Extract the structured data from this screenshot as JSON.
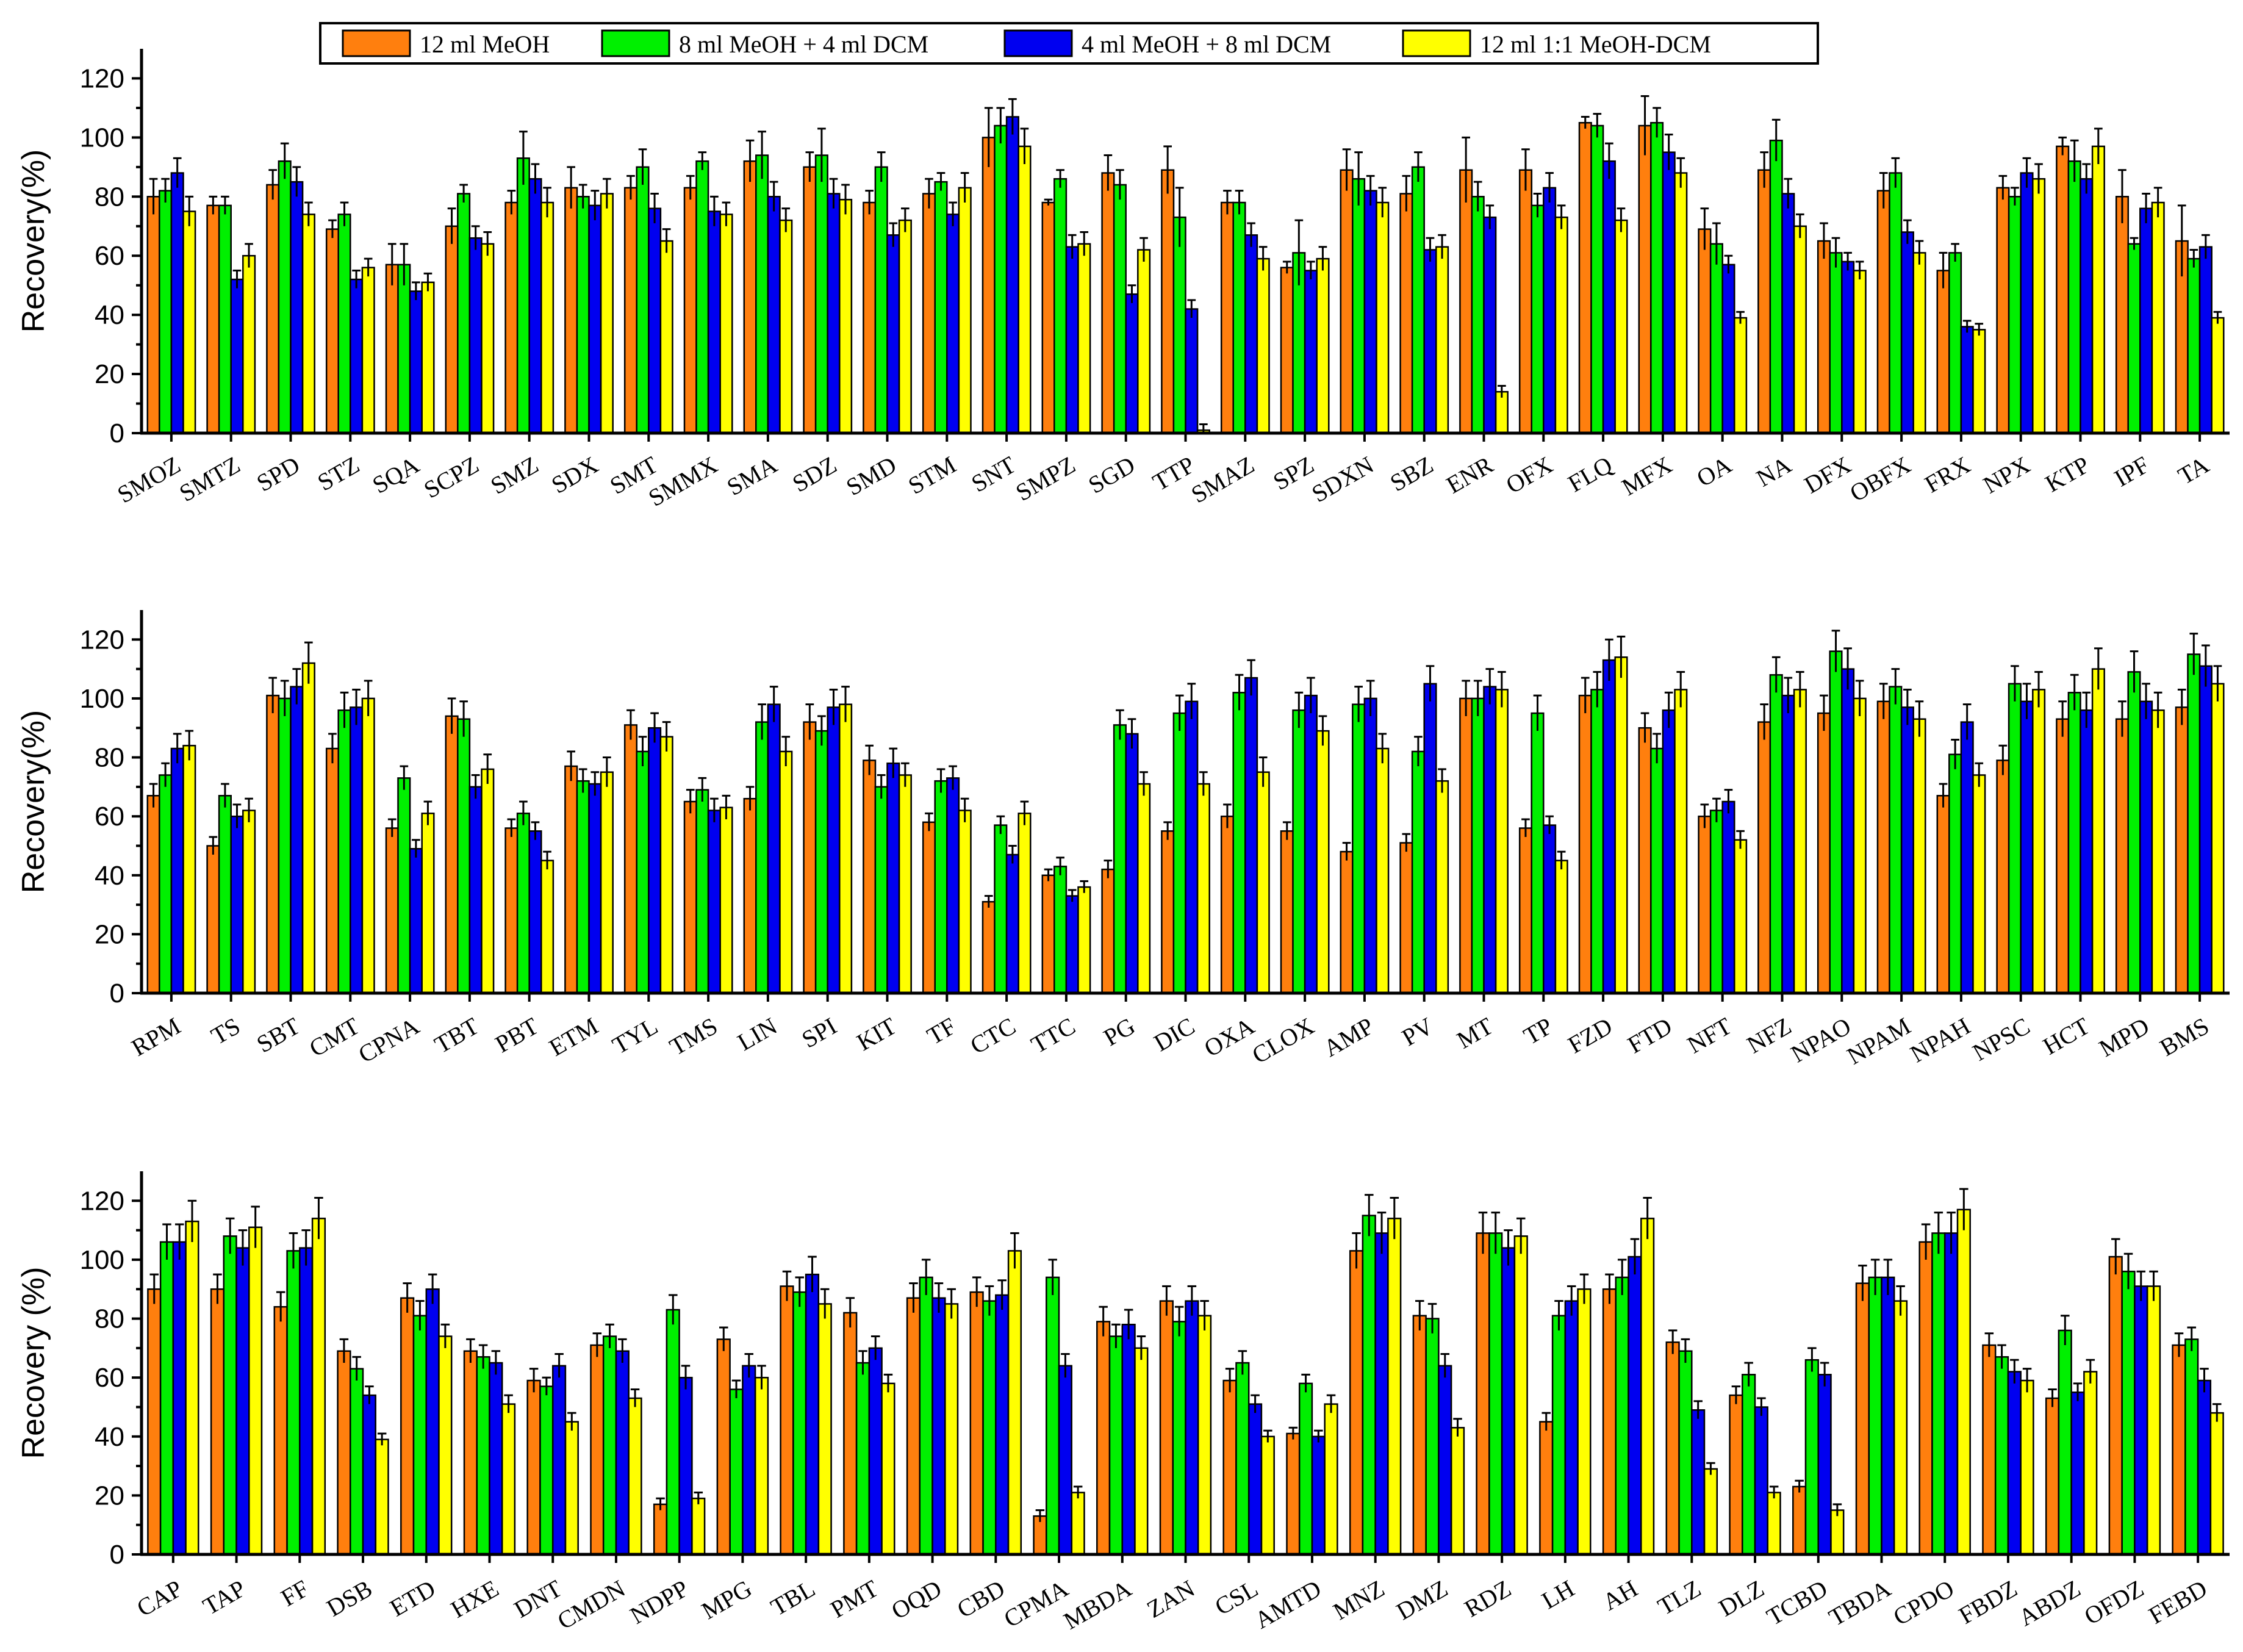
{
  "legend": {
    "items": [
      {
        "label": "12 ml MeOH",
        "color": "#FF7F0E"
      },
      {
        "label": "8 ml MeOH + 4 ml DCM",
        "color": "#00F000"
      },
      {
        "label": "4 ml MeOH + 8 ml DCM",
        "color": "#0000F0"
      },
      {
        "label": "12 ml 1:1 MeOH-DCM",
        "color": "#FFFF00"
      }
    ]
  },
  "chart_data": [
    {
      "type": "bar",
      "ylabel": "Recovery(%)",
      "ylim": [
        0,
        130
      ],
      "yticks": [
        0,
        20,
        40,
        60,
        80,
        100,
        120
      ],
      "categories": [
        "SMOZ",
        "SMTZ",
        "SPD",
        "STZ",
        "SQA",
        "SCPZ",
        "SMZ",
        "SDX",
        "SMT",
        "SMMX",
        "SMA",
        "SDZ",
        "SMD",
        "STM",
        "SNT",
        "SMPZ",
        "SGD",
        "TTP",
        "SMAZ",
        "SPZ",
        "SDXN",
        "SBZ",
        "ENR",
        "OFX",
        "FLQ",
        "MFX",
        "OA",
        "NA",
        "DFX",
        "OBFX",
        "FRX",
        "NPX",
        "KTP",
        "IPF",
        "TA"
      ],
      "series": [
        {
          "name": "12 ml MeOH",
          "values": [
            80,
            77,
            84,
            69,
            57,
            70,
            78,
            83,
            83,
            83,
            92,
            90,
            78,
            81,
            100,
            78,
            88,
            89,
            78,
            56,
            89,
            81,
            89,
            89,
            105,
            104,
            69,
            89,
            65,
            82,
            55,
            83,
            97,
            80,
            65
          ],
          "errors": [
            6,
            3,
            5,
            3,
            7,
            6,
            4,
            7,
            4,
            4,
            7,
            5,
            4,
            5,
            10,
            1,
            6,
            8,
            4,
            2,
            7,
            6,
            11,
            7,
            2,
            10,
            7,
            6,
            6,
            6,
            6,
            4,
            3,
            9,
            12
          ]
        },
        {
          "name": "8 ml MeOH + 4 ml DCM",
          "values": [
            82,
            77,
            92,
            74,
            57,
            81,
            93,
            80,
            90,
            92,
            94,
            94,
            90,
            85,
            104,
            86,
            84,
            73,
            78,
            61,
            86,
            90,
            80,
            77,
            104,
            105,
            64,
            99,
            61,
            88,
            61,
            80,
            92,
            64,
            59
          ],
          "errors": [
            4,
            3,
            6,
            4,
            7,
            3,
            9,
            4,
            6,
            3,
            8,
            9,
            5,
            3,
            6,
            3,
            5,
            10,
            4,
            11,
            9,
            5,
            5,
            4,
            4,
            5,
            7,
            7,
            5,
            5,
            3,
            3,
            7,
            2,
            3
          ]
        },
        {
          "name": "4 ml MeOH + 8 ml DCM",
          "values": [
            88,
            52,
            85,
            52,
            48,
            66,
            86,
            77,
            76,
            75,
            80,
            81,
            67,
            74,
            107,
            63,
            47,
            42,
            67,
            55,
            82,
            62,
            73,
            83,
            92,
            95,
            57,
            81,
            58,
            68,
            36,
            88,
            86,
            76,
            63
          ]
        },
        {
          "name": "12 ml 1:1 MeOH-DCM",
          "values": [
            75,
            60,
            74,
            56,
            51,
            64,
            78,
            81,
            65,
            74,
            72,
            79,
            72,
            83,
            97,
            64,
            62,
            1,
            59,
            59,
            78,
            63,
            14,
            73,
            72,
            88,
            39,
            70,
            55,
            61,
            35,
            86,
            97,
            78,
            39
          ]
        }
      ]
    },
    {
      "type": "bar",
      "ylabel": "Recovery(%)",
      "ylim": [
        0,
        130
      ],
      "yticks": [
        0,
        20,
        40,
        60,
        80,
        100,
        120
      ],
      "categories": [
        "RPM",
        "TS",
        "SBT",
        "CMT",
        "CPNA",
        "TBT",
        "PBT",
        "ETM",
        "TYL",
        "TMS",
        "LIN",
        "SPI",
        "KIT",
        "TF",
        "CTC",
        "TTC",
        "PG",
        "DIC",
        "OXA",
        "CLOX",
        "AMP",
        "PV",
        "MT",
        "TP",
        "FZD",
        "FTD",
        "NFT",
        "NFZ",
        "NPAO",
        "NPAM",
        "NPAH",
        "NPSC",
        "HCT",
        "MPD",
        "BMS"
      ],
      "series": [
        {
          "name": "12 ml MeOH",
          "values": [
            67,
            50,
            101,
            83,
            56,
            94,
            56,
            77,
            91,
            65,
            66,
            92,
            79,
            58,
            31,
            40,
            42,
            55,
            60,
            55,
            48,
            51,
            100,
            56,
            101,
            90,
            60,
            92,
            95,
            99,
            67,
            79,
            93,
            93,
            97
          ]
        },
        {
          "name": "8 ml MeOH + 4 ml DCM",
          "values": [
            74,
            67,
            100,
            96,
            73,
            93,
            61,
            72,
            82,
            69,
            92,
            89,
            70,
            72,
            57,
            43,
            91,
            95,
            102,
            96,
            98,
            82,
            100,
            95,
            103,
            83,
            62,
            108,
            116,
            104,
            81,
            105,
            102,
            109,
            115
          ]
        },
        {
          "name": "4 ml MeOH + 8 ml DCM",
          "values": [
            83,
            60,
            104,
            97,
            49,
            70,
            55,
            71,
            90,
            62,
            98,
            97,
            78,
            73,
            47,
            33,
            88,
            99,
            107,
            101,
            100,
            105,
            104,
            57,
            113,
            96,
            65,
            101,
            110,
            97,
            92,
            99,
            96,
            99,
            111
          ]
        },
        {
          "name": "12 ml 1:1 MeOH-DCM",
          "values": [
            84,
            62,
            112,
            100,
            61,
            76,
            45,
            75,
            87,
            63,
            82,
            98,
            74,
            62,
            61,
            36,
            71,
            71,
            75,
            89,
            83,
            72,
            103,
            45,
            114,
            103,
            52,
            103,
            100,
            93,
            74,
            103,
            110,
            96,
            105
          ]
        }
      ]
    },
    {
      "type": "bar",
      "ylabel": "Recovery (%)",
      "ylim": [
        0,
        130
      ],
      "yticks": [
        0,
        20,
        40,
        60,
        80,
        100,
        120
      ],
      "categories": [
        "CAP",
        "TAP",
        "FF",
        "DSB",
        "ETD",
        "HXE",
        "DNT",
        "CMDN",
        "NDPP",
        "MPG",
        "TBL",
        "PMT",
        "OQD",
        "CBD",
        "CPMA",
        "MBDA",
        "ZAN",
        "CSL",
        "AMTD",
        "MNZ",
        "DMZ",
        "RDZ",
        "LH",
        "AH",
        "TLZ",
        "DLZ",
        "TCBD",
        "TBDA",
        "CPDO",
        "FBDZ",
        "ABDZ",
        "OFDZ",
        "FEBD"
      ],
      "series": [
        {
          "name": "12 ml MeOH",
          "values": [
            90,
            90,
            84,
            69,
            87,
            69,
            59,
            71,
            17,
            73,
            91,
            82,
            87,
            89,
            13,
            79,
            86,
            59,
            41,
            103,
            81,
            109,
            45,
            90,
            72,
            54,
            23,
            92,
            106,
            71,
            53,
            101,
            71
          ]
        },
        {
          "name": "8 ml MeOH + 4 ml DCM",
          "values": [
            106,
            108,
            103,
            63,
            81,
            67,
            57,
            74,
            83,
            56,
            89,
            65,
            94,
            86,
            94,
            74,
            79,
            65,
            58,
            115,
            80,
            109,
            81,
            94,
            69,
            61,
            66,
            94,
            109,
            67,
            76,
            96,
            73
          ]
        },
        {
          "name": "4 ml MeOH + 8 ml DCM",
          "values": [
            106,
            104,
            104,
            54,
            90,
            65,
            64,
            69,
            60,
            64,
            95,
            70,
            87,
            88,
            64,
            78,
            86,
            51,
            40,
            109,
            64,
            104,
            86,
            101,
            49,
            50,
            61,
            94,
            109,
            62,
            55,
            91,
            59
          ]
        },
        {
          "name": "12 ml 1:1 MeOH-DCM",
          "values": [
            113,
            111,
            114,
            39,
            74,
            51,
            45,
            53,
            19,
            60,
            85,
            58,
            85,
            103,
            21,
            70,
            81,
            40,
            51,
            114,
            43,
            108,
            90,
            114,
            29,
            21,
            15,
            86,
            117,
            59,
            62,
            91,
            48
          ]
        }
      ]
    }
  ]
}
